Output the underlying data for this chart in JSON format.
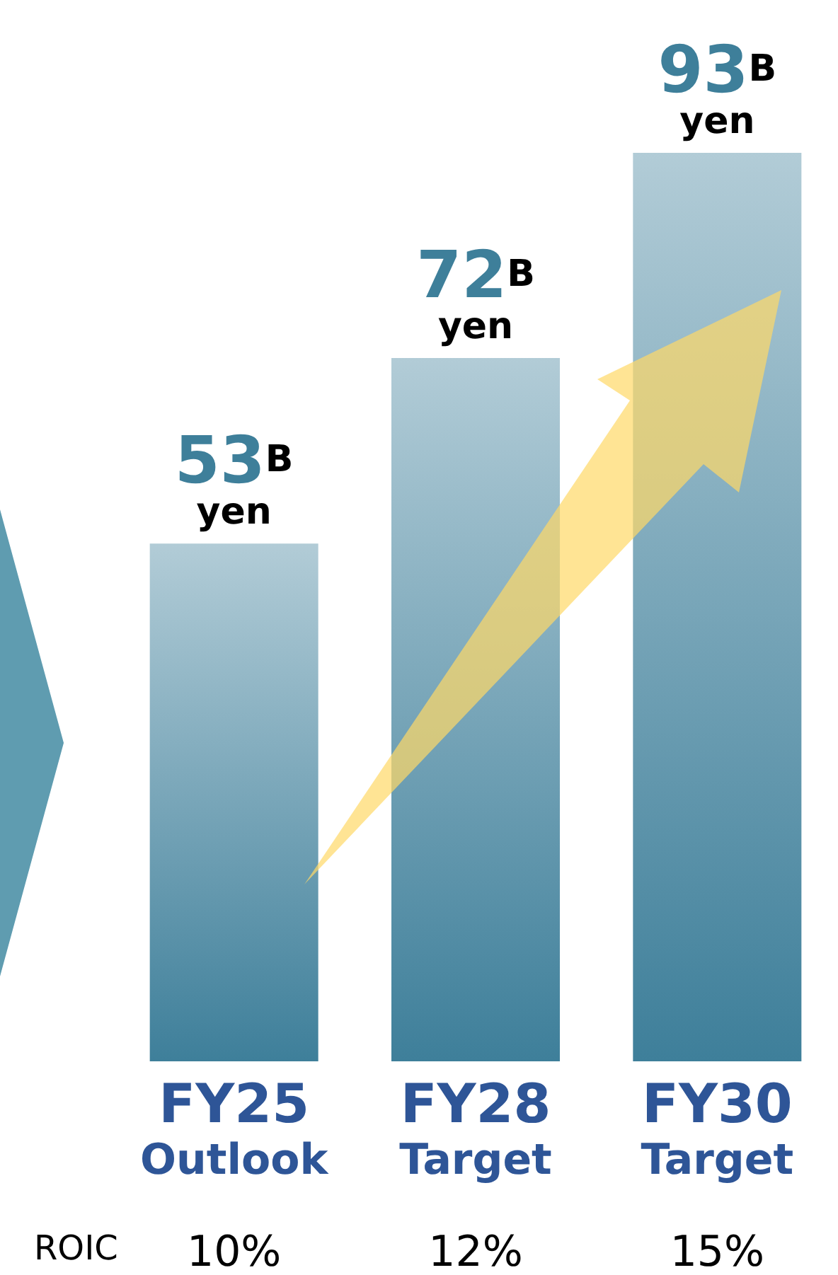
{
  "chart_data": {
    "type": "bar",
    "categories": [
      "FY25\nOutlook",
      "FY28\nTarget",
      "FY30\nTarget"
    ],
    "values": [
      53,
      72,
      93
    ],
    "color": "#3e7f9a",
    "value_labels": [
      "53B yen",
      "72B yen",
      "93B yen"
    ],
    "annotations": [
      "ROIC",
      "10%",
      "12%",
      "15%"
    ]
  }
}
